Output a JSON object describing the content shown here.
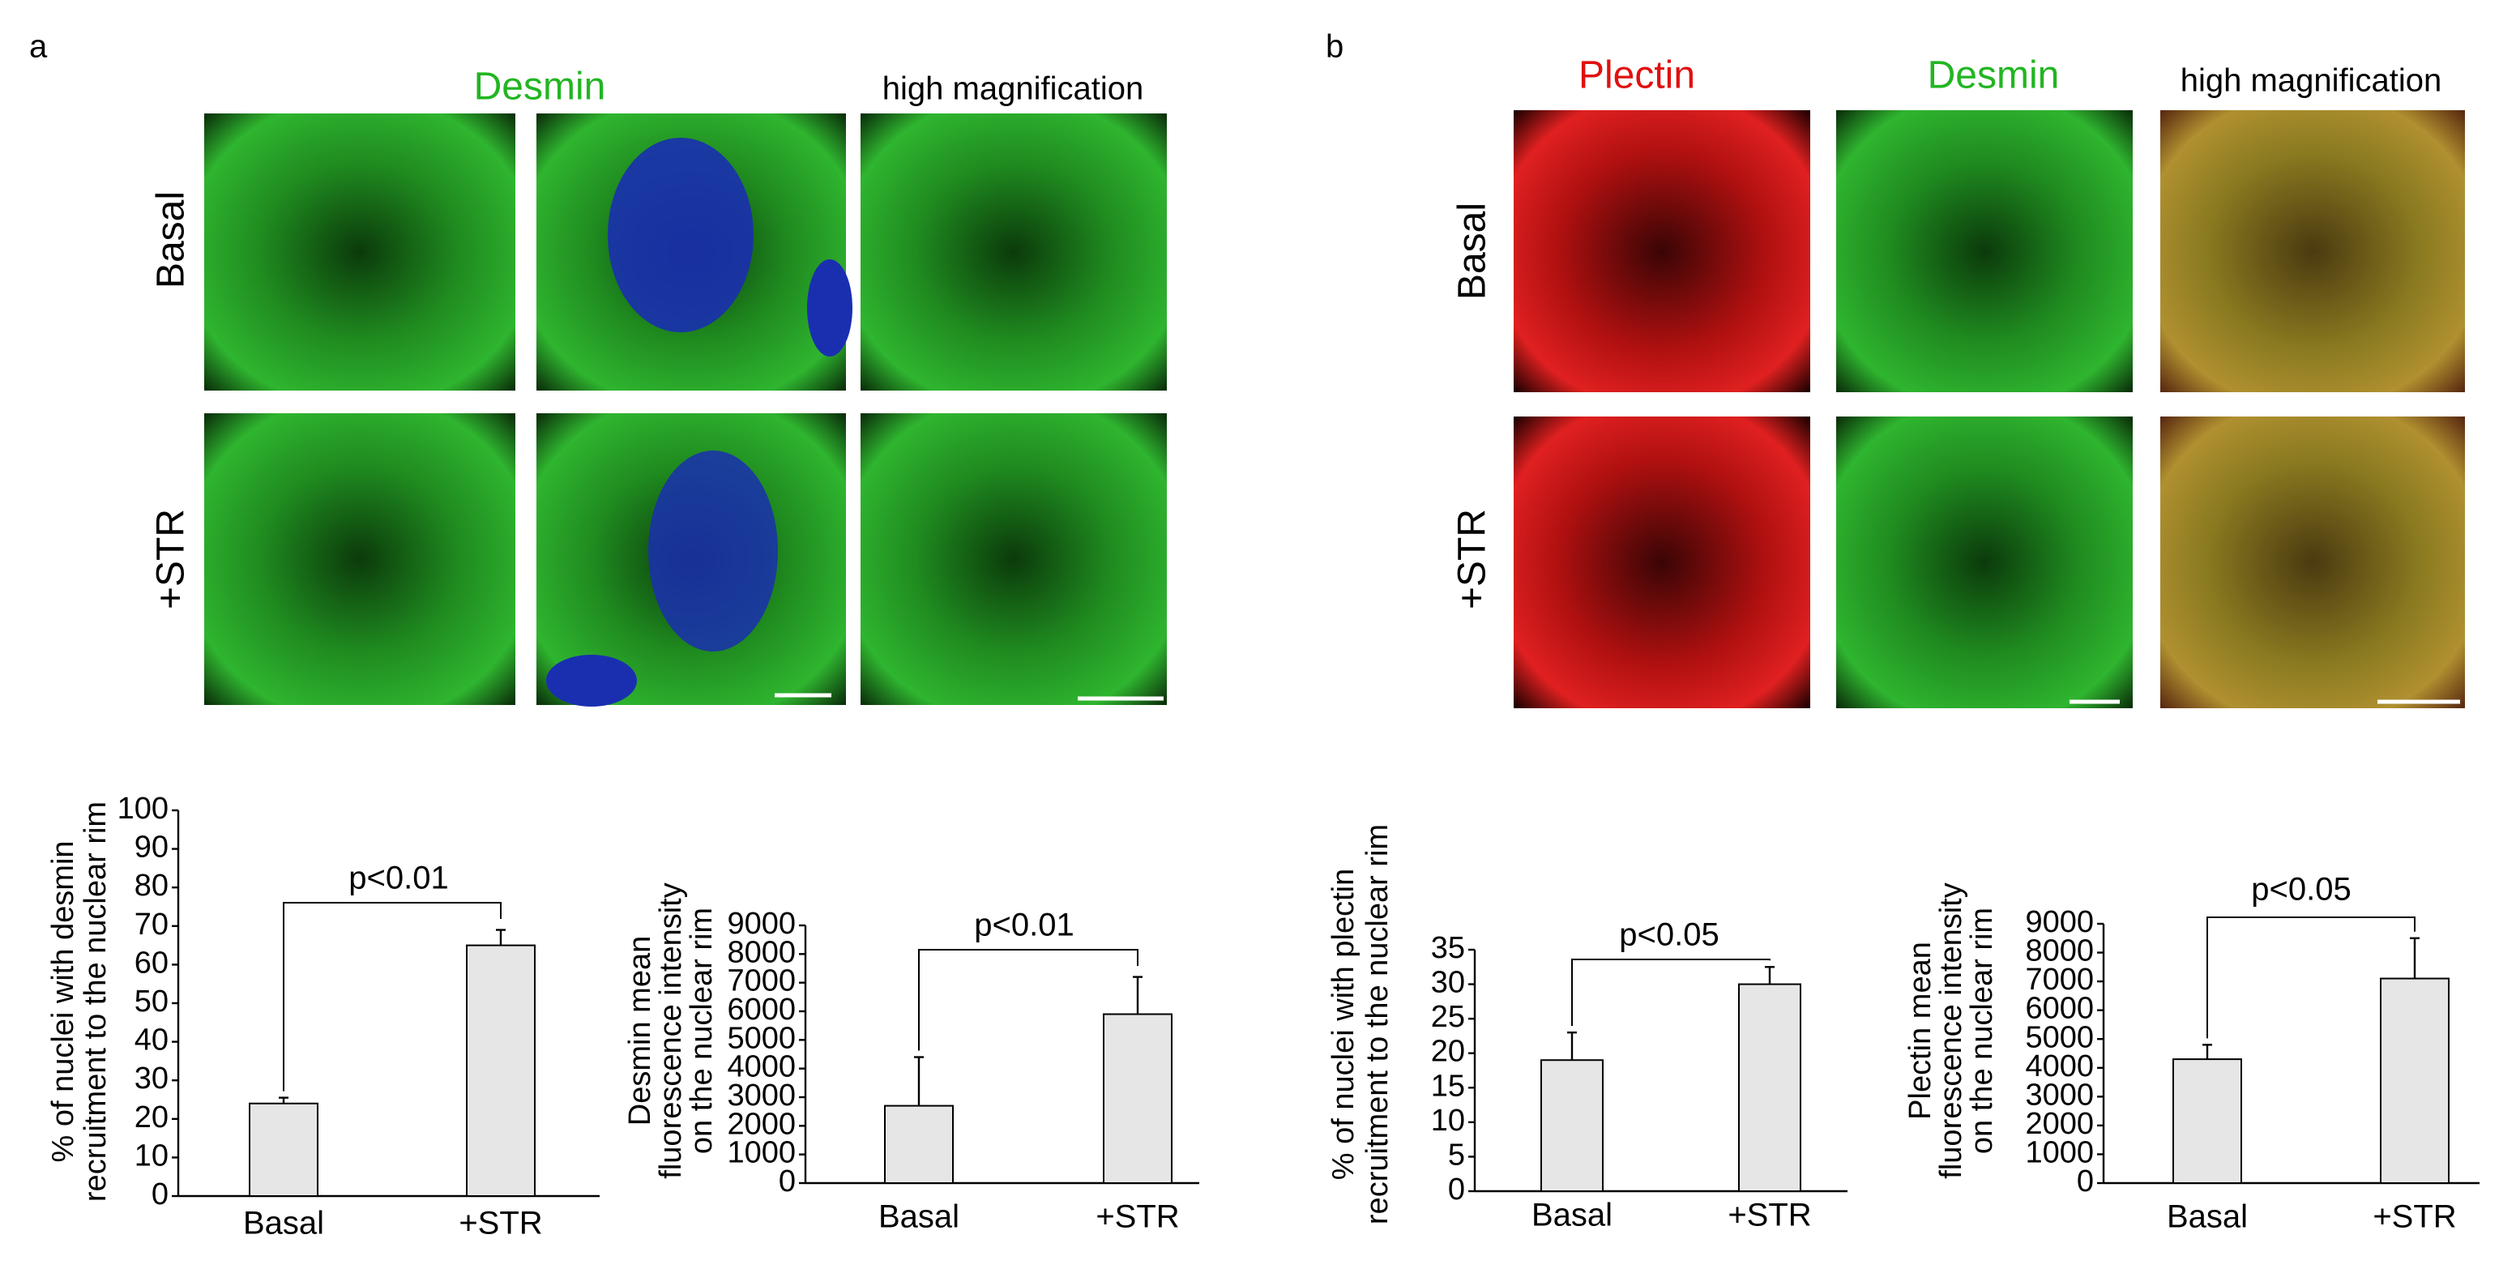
{
  "panels": {
    "a": {
      "label": "a",
      "column_title": "Desmin",
      "magnification_title": "high magnification",
      "rows": [
        "Basal",
        "+STR"
      ]
    },
    "b": {
      "label": "b",
      "column_titles": [
        "Plectin",
        "Desmin"
      ],
      "magnification_title": "high magnification",
      "rows": [
        "Basal",
        "+STR"
      ]
    }
  },
  "chart_data": [
    {
      "type": "bar",
      "ylabel": [
        "% of nuclei with desmin",
        "recruitment to the nuclear rim"
      ],
      "categories": [
        "Basal",
        "+STR"
      ],
      "values": [
        24,
        65
      ],
      "errors": [
        1.5,
        4
      ],
      "color": "#e6e6e6",
      "ylim": [
        0,
        100
      ],
      "yticks": [
        0,
        10,
        20,
        30,
        40,
        50,
        60,
        70,
        80,
        90,
        100
      ],
      "annotation": "p<0.01"
    },
    {
      "type": "bar",
      "ylabel": [
        "Desmin mean",
        "fluorescence intensity",
        "on the nuclear rim"
      ],
      "categories": [
        "Basal",
        "+STR"
      ],
      "values": [
        2700,
        5900
      ],
      "errors": [
        1700,
        1300
      ],
      "color": "#e6e6e6",
      "ylim": [
        0,
        9000
      ],
      "yticks": [
        0,
        1000,
        2000,
        3000,
        4000,
        5000,
        6000,
        7000,
        8000,
        9000
      ],
      "annotation": "p<0.01"
    },
    {
      "type": "bar",
      "ylabel": [
        "% of nuclei with plectin",
        "recruitment to the nuclear rim"
      ],
      "categories": [
        "Basal",
        "+STR"
      ],
      "values": [
        19,
        30
      ],
      "errors": [
        4,
        2.5
      ],
      "color": "#e6e6e6",
      "ylim": [
        0,
        35
      ],
      "yticks": [
        0,
        5,
        10,
        15,
        20,
        25,
        30,
        35
      ],
      "annotation": "p<0.05"
    },
    {
      "type": "bar",
      "ylabel": [
        "Plectin mean",
        "fluorescence intensity",
        "on the nuclear rim"
      ],
      "categories": [
        "Basal",
        "+STR"
      ],
      "values": [
        4300,
        7100
      ],
      "errors": [
        500,
        1400
      ],
      "color": "#e6e6e6",
      "ylim": [
        0,
        9000
      ],
      "yticks": [
        0,
        1000,
        2000,
        3000,
        4000,
        5000,
        6000,
        7000,
        8000,
        9000
      ],
      "annotation": "p<0.05"
    }
  ]
}
